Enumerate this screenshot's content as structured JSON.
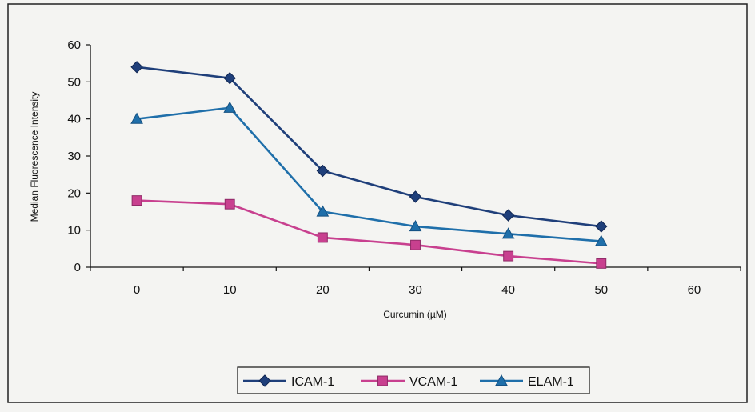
{
  "chart_data": {
    "type": "line",
    "title": "",
    "xlabel": "Curcumin (µM)",
    "ylabel": "Median Fluorescence Intensity",
    "x_ticks": [
      0,
      10,
      20,
      30,
      40,
      50,
      60
    ],
    "y_ticks": [
      0,
      10,
      20,
      30,
      40,
      50,
      60
    ],
    "xlim": [
      -5,
      65
    ],
    "ylim": [
      0,
      60
    ],
    "x": [
      0,
      10,
      20,
      30,
      40,
      50
    ],
    "grid": false,
    "legend_position": "bottom-center",
    "series": [
      {
        "name": "ICAM-1",
        "values": [
          54,
          51,
          26,
          19,
          14,
          11
        ],
        "color": "#1f3f7a",
        "marker": "diamond"
      },
      {
        "name": "VCAM-1",
        "values": [
          18,
          17,
          8,
          6,
          3,
          1
        ],
        "color": "#c8408f",
        "marker": "square"
      },
      {
        "name": "ELAM-1",
        "values": [
          40,
          43,
          15,
          11,
          9,
          7
        ],
        "color": "#1f6faa",
        "marker": "triangle"
      }
    ]
  }
}
